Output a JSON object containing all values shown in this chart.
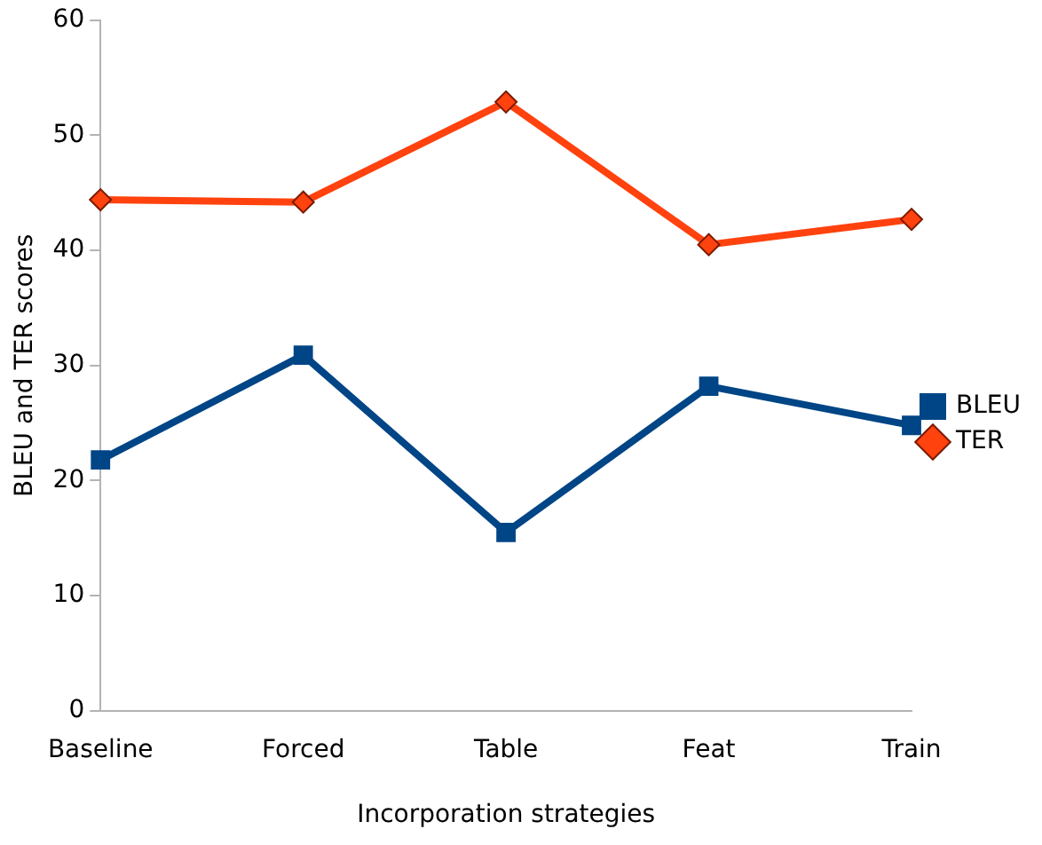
{
  "chart_data": {
    "type": "line",
    "xlabel": "Incorporation strategies",
    "ylabel": "BLEU and TER scores",
    "categories": [
      "Baseline",
      "Forced",
      "Table",
      "Feat",
      "Train"
    ],
    "series": [
      {
        "name": "BLEU",
        "color": "#004586",
        "marker": "square",
        "values": [
          21.8,
          30.9,
          15.5,
          28.2,
          24.8
        ]
      },
      {
        "name": "TER",
        "color": "#ff420e",
        "marker": "diamond",
        "values": [
          44.4,
          44.2,
          52.9,
          40.5,
          42.7
        ]
      }
    ],
    "ylim": [
      0,
      60
    ],
    "yticks": [
      0,
      10,
      20,
      30,
      40,
      50,
      60
    ],
    "grid": false,
    "legend": "right",
    "line_style": "solid"
  }
}
